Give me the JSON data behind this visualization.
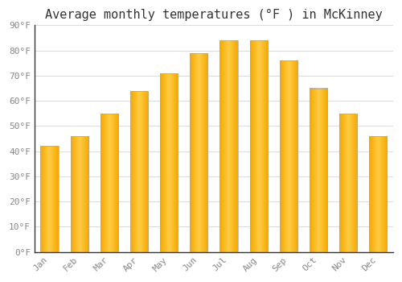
{
  "title": "Average monthly temperatures (°F ) in McKinney",
  "months": [
    "Jan",
    "Feb",
    "Mar",
    "Apr",
    "May",
    "Jun",
    "Jul",
    "Aug",
    "Sep",
    "Oct",
    "Nov",
    "Dec"
  ],
  "temperatures": [
    42,
    46,
    55,
    64,
    71,
    79,
    84,
    84,
    76,
    65,
    55,
    46
  ],
  "bar_color_center": "#FFCC44",
  "bar_color_edge": "#F5A800",
  "bar_edge_color": "#AAAAAA",
  "ylim": [
    0,
    90
  ],
  "yticks": [
    0,
    10,
    20,
    30,
    40,
    50,
    60,
    70,
    80,
    90
  ],
  "ytick_labels": [
    "0°F",
    "10°F",
    "20°F",
    "30°F",
    "40°F",
    "50°F",
    "60°F",
    "70°F",
    "80°F",
    "90°F"
  ],
  "background_color": "#FFFFFF",
  "plot_bg_color": "#FFFFFF",
  "grid_color": "#DDDDDD",
  "title_fontsize": 11,
  "tick_fontsize": 8,
  "tick_color": "#888888",
  "font_family": "monospace",
  "bar_width": 0.6,
  "figsize": [
    5.0,
    3.5
  ],
  "dpi": 100
}
